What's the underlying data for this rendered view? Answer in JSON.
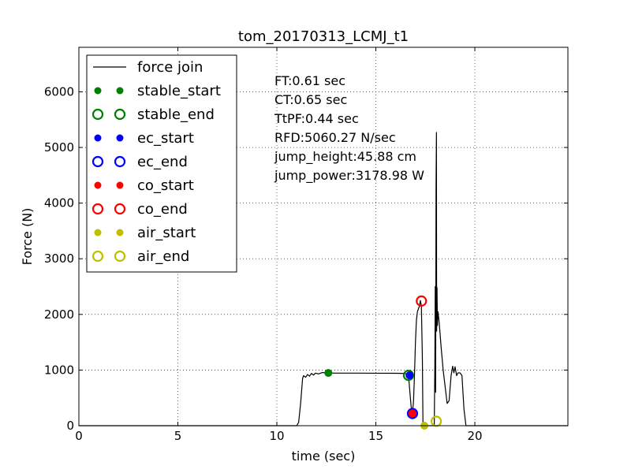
{
  "chart_data": {
    "type": "line",
    "title": "tom_20170313_LCMJ_t1",
    "xlabel": "time (sec)",
    "ylabel": "Force (N)",
    "xlim": [
      0,
      24.7
    ],
    "ylim": [
      0,
      6800
    ],
    "grid": true,
    "x_ticks": [
      0,
      5,
      10,
      15,
      20
    ],
    "y_ticks": [
      0,
      1000,
      2000,
      3000,
      4000,
      5000,
      6000
    ],
    "x_tick_labels": [
      "0",
      "5",
      "10",
      "15",
      "20"
    ],
    "y_tick_labels": [
      "0",
      "1000",
      "2000",
      "3000",
      "4000",
      "5000",
      "6000"
    ],
    "legend_position": "upper-left",
    "series": [
      {
        "name": "force join",
        "kind": "line",
        "color": "#000000",
        "points": [
          [
            0,
            0
          ],
          [
            11.0,
            0
          ],
          [
            11.1,
            60
          ],
          [
            11.2,
            400
          ],
          [
            11.3,
            850
          ],
          [
            11.35,
            900
          ],
          [
            11.45,
            870
          ],
          [
            11.55,
            920
          ],
          [
            11.65,
            890
          ],
          [
            11.75,
            940
          ],
          [
            11.85,
            910
          ],
          [
            11.95,
            945
          ],
          [
            12.1,
            930
          ],
          [
            12.3,
            955
          ],
          [
            12.6,
            948
          ],
          [
            13.0,
            945
          ],
          [
            14.0,
            945
          ],
          [
            15.0,
            943
          ],
          [
            16.0,
            942
          ],
          [
            16.45,
            940
          ],
          [
            16.55,
            930
          ],
          [
            16.65,
            900
          ],
          [
            16.72,
            600
          ],
          [
            16.78,
            350
          ],
          [
            16.84,
            220
          ],
          [
            16.9,
            420
          ],
          [
            16.95,
            900
          ],
          [
            17.0,
            1500
          ],
          [
            17.05,
            1900
          ],
          [
            17.1,
            2050
          ],
          [
            17.15,
            2100
          ],
          [
            17.2,
            2150
          ],
          [
            17.25,
            2250
          ],
          [
            17.3,
            2150
          ],
          [
            17.35,
            1200
          ],
          [
            17.38,
            0
          ],
          [
            17.95,
            0
          ],
          [
            17.98,
            1100
          ],
          [
            18.0,
            2500
          ],
          [
            18.02,
            600
          ],
          [
            18.04,
            4300
          ],
          [
            18.06,
            5270
          ],
          [
            18.07,
            1700
          ],
          [
            18.09,
            2480
          ],
          [
            18.11,
            1800
          ],
          [
            18.14,
            2050
          ],
          [
            18.2,
            1850
          ],
          [
            18.3,
            1400
          ],
          [
            18.4,
            1000
          ],
          [
            18.5,
            700
          ],
          [
            18.6,
            400
          ],
          [
            18.7,
            450
          ],
          [
            18.8,
            900
          ],
          [
            18.88,
            1070
          ],
          [
            18.94,
            950
          ],
          [
            19.0,
            1060
          ],
          [
            19.08,
            900
          ],
          [
            19.15,
            950
          ],
          [
            19.25,
            950
          ],
          [
            19.35,
            900
          ],
          [
            19.45,
            300
          ],
          [
            19.55,
            0
          ],
          [
            24.7,
            0
          ]
        ]
      },
      {
        "name": "stable_start",
        "kind": "marker",
        "shape": "dot",
        "color": "#008000",
        "points": [
          [
            12.6,
            948
          ]
        ]
      },
      {
        "name": "stable_end",
        "kind": "marker",
        "shape": "ring",
        "color": "#008000",
        "points": [
          [
            16.65,
            905
          ]
        ]
      },
      {
        "name": "ec_start",
        "kind": "marker",
        "shape": "dot",
        "color": "#0000ff",
        "points": [
          [
            16.7,
            905
          ]
        ]
      },
      {
        "name": "ec_end",
        "kind": "marker",
        "shape": "ring",
        "color": "#0000ff",
        "points": [
          [
            16.85,
            220
          ]
        ]
      },
      {
        "name": "co_start",
        "kind": "marker",
        "shape": "dot",
        "color": "#ff0000",
        "points": [
          [
            16.85,
            220
          ]
        ]
      },
      {
        "name": "co_end",
        "kind": "marker",
        "shape": "ring",
        "color": "#ff0000",
        "points": [
          [
            17.3,
            2240
          ]
        ]
      },
      {
        "name": "air_start",
        "kind": "marker",
        "shape": "dot",
        "color": "#bfbf00",
        "points": [
          [
            17.45,
            0
          ]
        ]
      },
      {
        "name": "air_end",
        "kind": "marker",
        "shape": "ring",
        "color": "#bfbf00",
        "points": [
          [
            18.05,
            80
          ]
        ]
      }
    ],
    "annotations": [
      "FT:0.61 sec",
      "CT:0.65 sec",
      "TtPF:0.44 sec",
      "RFD:5060.27 N/sec",
      "jump_height:45.88 cm",
      "jump_power:3178.98 W"
    ]
  }
}
